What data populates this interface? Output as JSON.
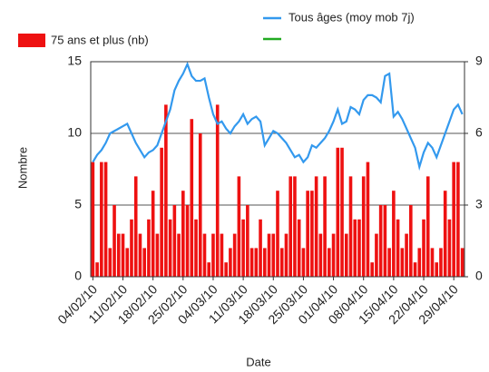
{
  "chart_data": {
    "type": "bar",
    "xlabel": "Date",
    "ylabel": "Nombre",
    "categories": [
      "04/02/10",
      null,
      null,
      null,
      null,
      null,
      null,
      "11/02/10",
      null,
      null,
      null,
      null,
      null,
      null,
      "18/02/10",
      null,
      null,
      null,
      null,
      null,
      null,
      "25/02/10",
      null,
      null,
      null,
      null,
      null,
      null,
      "04/03/10",
      null,
      null,
      null,
      null,
      null,
      null,
      "11/03/10",
      null,
      null,
      null,
      null,
      null,
      null,
      "18/03/10",
      null,
      null,
      null,
      null,
      null,
      null,
      "25/03/10",
      null,
      null,
      null,
      null,
      null,
      null,
      "01/04/10",
      null,
      null,
      null,
      null,
      null,
      null,
      "08/04/10",
      null,
      null,
      null,
      null,
      null,
      null,
      "15/04/10",
      null,
      null,
      null,
      null,
      null,
      null,
      "22/04/10",
      null,
      null,
      null,
      null,
      null,
      null,
      "29/04/10",
      null,
      null
    ],
    "series": [
      {
        "name": "75 ans et plus (nb)",
        "color": "#ee1111",
        "type": "bar",
        "axis": "y",
        "values": [
          8,
          1,
          8,
          8,
          2,
          5,
          3,
          3,
          2,
          4,
          7,
          3,
          2,
          4,
          6,
          3,
          9,
          12,
          4,
          5,
          3,
          6,
          5,
          11,
          4,
          10,
          3,
          1,
          3,
          12,
          3,
          1,
          2,
          3,
          7,
          4,
          5,
          2,
          2,
          4,
          2,
          3,
          3,
          6,
          2,
          3,
          7,
          7,
          4,
          2,
          6,
          6,
          7,
          3,
          7,
          2,
          3,
          9,
          9,
          3,
          7,
          4,
          4,
          7,
          8,
          1,
          3,
          5,
          5,
          2,
          6,
          4,
          2,
          3,
          5,
          1,
          2,
          4,
          7,
          2,
          1,
          2,
          6,
          4,
          8,
          8,
          2
        ]
      },
      {
        "name": "Tous âges (moy mob 7j)",
        "color": "#3399ee",
        "type": "line",
        "axis": "y2",
        "values": [
          4.8,
          5.1,
          5.3,
          5.6,
          6.0,
          6.1,
          6.2,
          6.3,
          6.4,
          6.0,
          5.6,
          5.3,
          5.0,
          5.2,
          5.3,
          5.5,
          6.0,
          6.5,
          7.0,
          7.8,
          8.2,
          8.5,
          8.9,
          8.4,
          8.2,
          8.2,
          8.3,
          7.5,
          6.8,
          6.4,
          6.5,
          6.2,
          6.0,
          6.3,
          6.5,
          6.8,
          6.4,
          6.6,
          6.7,
          6.5,
          5.5,
          5.8,
          6.1,
          6.0,
          5.8,
          5.6,
          5.3,
          5.0,
          5.1,
          4.8,
          5.0,
          5.5,
          5.4,
          5.6,
          5.8,
          6.1,
          6.5,
          7.0,
          6.4,
          6.5,
          7.1,
          7.0,
          6.8,
          7.4,
          7.6,
          7.6,
          7.5,
          7.3,
          8.4,
          8.5,
          6.7,
          6.9,
          6.6,
          6.2,
          5.8,
          5.4,
          4.6,
          5.2,
          5.6,
          5.4,
          5.0,
          5.5,
          6.0,
          6.5,
          7.0,
          7.2,
          6.8
        ]
      }
    ],
    "ylim": [
      0,
      15
    ],
    "yticks": [
      0,
      5,
      10,
      15
    ],
    "y2lim": [
      0,
      9
    ],
    "y2ticks": [
      0,
      3,
      6,
      9
    ],
    "grid": true
  }
}
